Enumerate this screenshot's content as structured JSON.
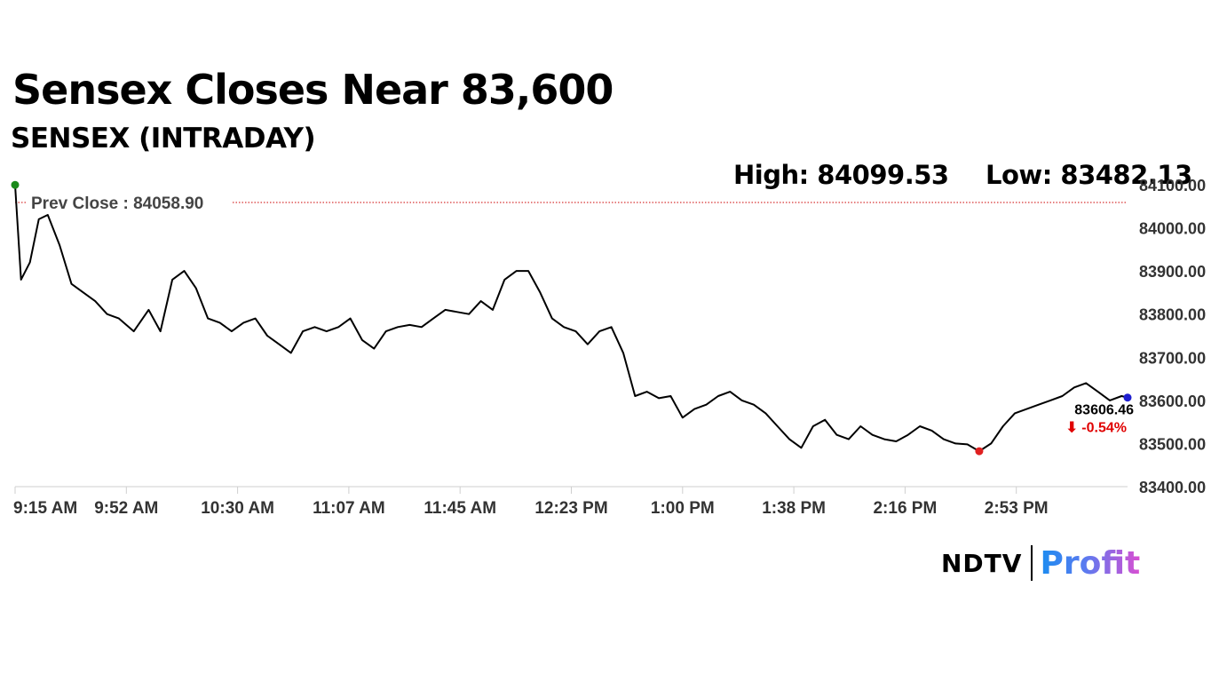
{
  "headline": "Sensex Closes Near 83,600",
  "subheadline": "SENSEX (INTRADAY)",
  "stats": {
    "high": "High: 84099.53",
    "low": "Low: 83482.13"
  },
  "chart_data": {
    "type": "line",
    "title": "SENSEX (INTRADAY)",
    "x_ticks": [
      "9:15 AM",
      "9:52 AM",
      "10:30 AM",
      "11:07 AM",
      "11:45 AM",
      "12:23 PM",
      "1:00 PM",
      "1:38 PM",
      "2:16 PM",
      "2:53 PM"
    ],
    "y_ticks": [
      "83400.00",
      "83500.00",
      "83600.00",
      "83700.00",
      "83800.00",
      "83900.00",
      "84000.00",
      "84100.00"
    ],
    "ylim": [
      83400,
      84100
    ],
    "grid": false,
    "prev_close": {
      "label": "Prev Close : 84058.90",
      "value": 84058.9
    },
    "high": 84099.53,
    "low": 83482.13,
    "last": {
      "value": "83606.46",
      "change": "⬇ -0.54%"
    },
    "series": [
      {
        "x": [
          "9:15",
          "9:17",
          "9:20",
          "9:23",
          "9:26",
          "9:30",
          "9:34",
          "9:38",
          "9:42",
          "9:46",
          "9:50",
          "9:55",
          "10:00",
          "10:04",
          "10:08",
          "10:12",
          "10:16",
          "10:20",
          "10:24",
          "10:28",
          "10:32",
          "10:36",
          "10:40",
          "10:44",
          "10:48",
          "10:52",
          "10:56",
          "11:00",
          "11:04",
          "11:08",
          "11:12",
          "11:16",
          "11:20",
          "11:24",
          "11:28",
          "11:32",
          "11:36",
          "11:40",
          "11:44",
          "11:48",
          "11:52",
          "11:56",
          "12:00",
          "12:04",
          "12:08",
          "12:12",
          "12:16",
          "12:20",
          "12:24",
          "12:28",
          "12:32",
          "12:36",
          "12:40",
          "12:44",
          "12:48",
          "12:52",
          "12:56",
          "1:00",
          "1:04",
          "1:08",
          "1:12",
          "1:16",
          "1:20",
          "1:24",
          "1:28",
          "1:32",
          "1:36",
          "1:40",
          "1:44",
          "1:48",
          "1:52",
          "1:56",
          "2:00",
          "2:04",
          "2:08",
          "2:12",
          "2:16",
          "2:20",
          "2:24",
          "2:28",
          "2:32",
          "2:36",
          "2:40",
          "2:44",
          "2:48",
          "2:52",
          "2:56",
          "3:00",
          "3:04",
          "3:08",
          "3:12",
          "3:16",
          "3:20",
          "3:24",
          "3:28",
          "3:30"
        ],
        "y": [
          84099.53,
          83880,
          83920,
          84020,
          84030,
          83960,
          83870,
          83850,
          83830,
          83800,
          83790,
          83760,
          83810,
          83760,
          83880,
          83900,
          83860,
          83790,
          83780,
          83760,
          83780,
          83790,
          83750,
          83730,
          83710,
          83760,
          83770,
          83760,
          83770,
          83790,
          83740,
          83720,
          83760,
          83770,
          83775,
          83770,
          83790,
          83810,
          83805,
          83800,
          83830,
          83810,
          83880,
          83900,
          83900,
          83850,
          83790,
          83770,
          83760,
          83730,
          83760,
          83770,
          83710,
          83610,
          83620,
          83605,
          83610,
          83560,
          83580,
          83590,
          83610,
          83620,
          83600,
          83590,
          83570,
          83540,
          83510,
          83490,
          83540,
          83555,
          83520,
          83510,
          83540,
          83520,
          83510,
          83505,
          83520,
          83540,
          83530,
          83510,
          83500,
          83498,
          83482.13,
          83500,
          83540,
          83570,
          83580,
          83590,
          83600,
          83610,
          83630,
          83640,
          83620,
          83600,
          83610,
          83606.46
        ]
      }
    ]
  },
  "colors": {
    "line": "#000000",
    "prev_close_line": "#cc0000",
    "high_marker": "#1a8a1a",
    "low_marker": "#e02020",
    "last_marker": "#1f1fd0",
    "change_negative": "#e00000"
  },
  "logo": {
    "ndtv": "NDTV",
    "profit": "Profit"
  }
}
